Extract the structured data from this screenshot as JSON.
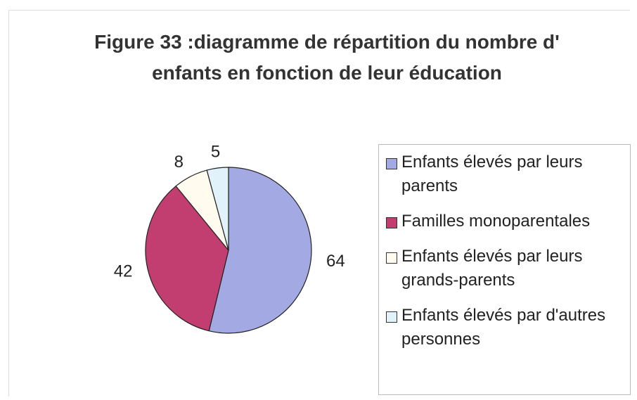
{
  "chart_data": {
    "type": "pie",
    "title": "Figure 33 :diagramme de répartition du nombre d' enfants en fonction de leur éducation",
    "categories": [
      "Enfants élevés par leurs parents",
      "Familles monoparentales",
      "Enfants élevés par leurs grands-parents",
      "Enfants élevés par d'autres personnes"
    ],
    "values": [
      64,
      42,
      8,
      5
    ],
    "colors": [
      "#a3a9e2",
      "#c23d70",
      "#fffbee",
      "#e2f2fa"
    ],
    "legend": "right"
  }
}
